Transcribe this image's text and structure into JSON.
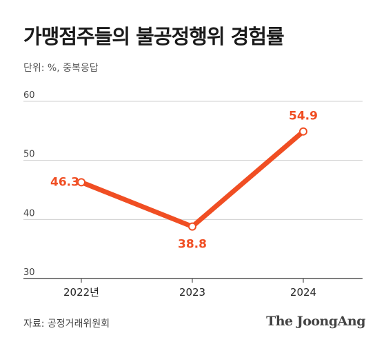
{
  "header": {
    "title": "가맹점주들의 불공정행위 경험률",
    "unit_note": "단위: %, 중복응답"
  },
  "footer": {
    "source": "자료: 공정거래위원회",
    "brand": "The JoongAng"
  },
  "colors": {
    "series": "#f04e23",
    "grid": "#cfcfcf",
    "axis": "#333333"
  },
  "chart_data": {
    "type": "line",
    "title": "가맹점주들의 불공정행위 경험률",
    "xlabel": "",
    "ylabel": "",
    "categories": [
      "2022년",
      "2023",
      "2024"
    ],
    "series": [
      {
        "values": [
          46.3,
          38.8,
          54.9
        ],
        "labels": [
          "46.3",
          "38.8",
          "54.9"
        ]
      }
    ],
    "ylim": [
      30,
      60
    ],
    "yticks": [
      30,
      40,
      50,
      60
    ],
    "grid": true,
    "legend": "none"
  }
}
